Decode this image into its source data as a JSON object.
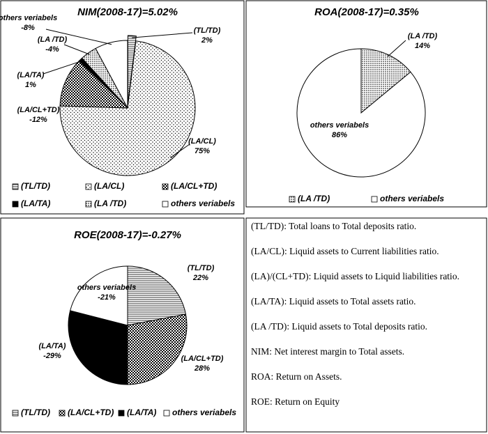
{
  "chart_data": [
    {
      "type": "pie",
      "title": "NIM(2008-17)=5.02%",
      "categories": [
        "(TL/TD)",
        "(LA/CL)",
        "(LA/CL+TD)",
        "(LA/TA)",
        "(LA /TD)",
        "others veriabels"
      ],
      "values": [
        2,
        75,
        -12,
        1,
        -4,
        -8
      ],
      "value_labels": [
        "2%",
        "75%",
        "-12%",
        "1%",
        "-4%",
        "-8%"
      ],
      "patterns": [
        "hlines",
        "dots",
        "checks",
        "black",
        "dense-dots",
        "white"
      ]
    },
    {
      "type": "pie",
      "title": "ROA(2008-17)=0.35%",
      "categories": [
        "(LA /TD)",
        "others veriabels"
      ],
      "values": [
        14,
        86
      ],
      "value_labels": [
        "14%",
        "86%"
      ],
      "patterns": [
        "dense-dots",
        "white"
      ]
    },
    {
      "type": "pie",
      "title": "ROE(2008-17)=-0.27%",
      "categories": [
        "(TL/TD)",
        "(LA/CL+TD)",
        "(LA/TA)",
        "others veriabels"
      ],
      "values": [
        22,
        28,
        -29,
        -21
      ],
      "value_labels": [
        "22%",
        "28%",
        "-29%",
        "-21%"
      ],
      "patterns": [
        "hlines",
        "checks",
        "black",
        "white"
      ]
    }
  ],
  "notes": [
    "(TL/TD): Total loans to Total deposits ratio.",
    "(LA/CL): Liquid assets to Current liabilities ratio.",
    "(LA)/(CL+TD): Liquid assets to Liquid liabilities ratio.",
    "(LA/TA): Liquid assets to Total assets ratio.",
    "(LA /TD): Liquid assets to Total deposits ratio.",
    "NIM: Net interest margin to Total assets.",
    "ROA: Return on Assets.",
    "ROE: Return on Equity"
  ]
}
